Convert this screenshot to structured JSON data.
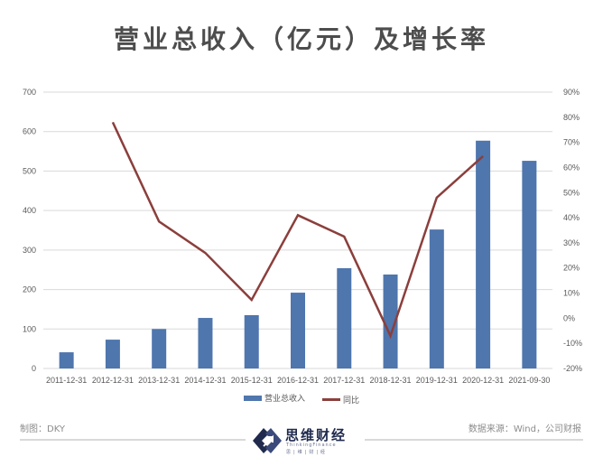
{
  "header": {
    "title": "营业总收入（亿元）及增长率"
  },
  "footer": {
    "left": "制图：DKY",
    "right": "数据来源：Wind，公司财报",
    "logo_text": "思维财经",
    "logo_sub": "ThinkingFinance",
    "logo_sub2": "思|维|财|经"
  },
  "colors": {
    "bar": "#4f76ad",
    "line": "#8b3f3c",
    "grid": "#d9d9d9",
    "title": "#4d4d4d",
    "logo": "#1f2a4d"
  },
  "legend": {
    "bar_label": "营业总收入",
    "line_label": "同比"
  },
  "chart_data": {
    "type": "bar+line",
    "title": "营业总收入（亿元）及增长率",
    "categories": [
      "2011-12-31",
      "2012-12-31",
      "2013-12-31",
      "2014-12-31",
      "2015-12-31",
      "2016-12-31",
      "2017-12-31",
      "2018-12-31",
      "2019-12-31",
      "2020-12-31",
      "2021-09-30"
    ],
    "series": [
      {
        "name": "营业总收入",
        "type": "bar",
        "axis": "left",
        "values": [
          41,
          73,
          100,
          128,
          135,
          192,
          254,
          238,
          352,
          577,
          526
        ]
      },
      {
        "name": "同比",
        "type": "line",
        "axis": "right",
        "values": [
          null,
          78,
          38.5,
          26,
          7.3,
          41,
          32.5,
          -7,
          48,
          64.5,
          null
        ]
      }
    ],
    "left_axis": {
      "min": 0,
      "max": 700,
      "ticks": [
        "0",
        "100",
        "200",
        "300",
        "400",
        "500",
        "600",
        "700"
      ]
    },
    "right_axis": {
      "min": -20,
      "max": 90,
      "ticks": [
        "-20%",
        "-10%",
        "0%",
        "10%",
        "20%",
        "30%",
        "40%",
        "50%",
        "60%",
        "70%",
        "80%",
        "90%"
      ]
    },
    "grid": true,
    "legend_position": "bottom"
  }
}
